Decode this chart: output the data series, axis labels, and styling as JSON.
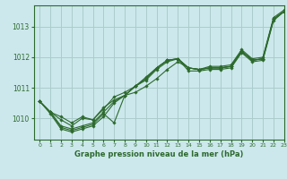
{
  "title": "Graphe pression niveau de la mer (hPa)",
  "bg_color": "#cce8ec",
  "grid_color": "#aacccc",
  "line_color": "#2d6a2d",
  "xlim": [
    -0.5,
    23
  ],
  "ylim": [
    1009.3,
    1013.7
  ],
  "yticks": [
    1010,
    1011,
    1012,
    1013
  ],
  "xticks": [
    0,
    1,
    2,
    3,
    4,
    5,
    6,
    7,
    8,
    9,
    10,
    11,
    12,
    13,
    14,
    15,
    16,
    17,
    18,
    19,
    20,
    21,
    22,
    23
  ],
  "series": [
    [
      1010.55,
      1010.2,
      1010.05,
      1009.85,
      1010.05,
      1009.95,
      1010.35,
      1010.6,
      1010.75,
      1010.85,
      1011.05,
      1011.3,
      1011.6,
      1011.85,
      1011.65,
      1011.6,
      1011.7,
      1011.7,
      1011.75,
      1012.25,
      1011.95,
      1012.0,
      1013.3,
      1013.55
    ],
    [
      1010.55,
      1010.2,
      1009.95,
      1009.75,
      1010.0,
      1009.95,
      1010.3,
      1010.7,
      1010.85,
      1011.05,
      1011.35,
      1011.65,
      1011.9,
      1011.95,
      1011.65,
      1011.6,
      1011.65,
      1011.65,
      1011.7,
      1012.2,
      1011.9,
      1011.95,
      1013.25,
      1013.5
    ],
    [
      1010.55,
      1010.2,
      1009.75,
      1009.65,
      1009.75,
      1009.85,
      1010.2,
      1010.55,
      1010.75,
      1011.05,
      1011.3,
      1011.65,
      1011.9,
      1011.95,
      1011.65,
      1011.6,
      1011.65,
      1011.65,
      1011.7,
      1012.2,
      1011.9,
      1011.95,
      1013.25,
      1013.5
    ],
    [
      1010.55,
      1010.2,
      1009.7,
      1009.6,
      1009.7,
      1009.8,
      1010.15,
      1009.85,
      1010.75,
      1011.05,
      1011.3,
      1011.65,
      1011.9,
      1011.95,
      1011.65,
      1011.6,
      1011.65,
      1011.65,
      1011.7,
      1012.2,
      1011.9,
      1011.95,
      1013.25,
      1013.5
    ],
    [
      1010.55,
      1010.15,
      1009.65,
      1009.55,
      1009.65,
      1009.75,
      1010.05,
      1010.5,
      1010.75,
      1011.05,
      1011.25,
      1011.6,
      1011.85,
      1011.95,
      1011.55,
      1011.55,
      1011.6,
      1011.6,
      1011.65,
      1012.15,
      1011.85,
      1011.9,
      1013.2,
      1013.5
    ]
  ]
}
